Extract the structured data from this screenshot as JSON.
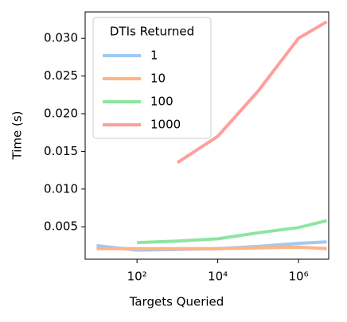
{
  "chart_data": {
    "type": "line",
    "x_label": "Targets Queried",
    "y_label": "Time (s)",
    "x": [
      10,
      100,
      1000,
      10000,
      100000,
      1000000,
      5000000
    ],
    "x_log": true,
    "xlim": [
      5.2,
      5600000
    ],
    "xticks": [
      {
        "value": 100,
        "label": "10²"
      },
      {
        "value": 10000,
        "label": "10⁴"
      },
      {
        "value": 1000000,
        "label": "10⁶"
      }
    ],
    "ylim": [
      0.0007,
      0.0335
    ],
    "yticks": [
      0.005,
      {
        "value": 0.01,
        "label": "0.010"
      },
      0.015,
      {
        "value": 0.02,
        "label": "0.020"
      },
      0.025,
      {
        "value": 0.03,
        "label": "0.030"
      }
    ],
    "grid": false,
    "legend_title": "DTIs Returned",
    "legend_position": "upper-left",
    "series": [
      {
        "name": "1",
        "color": "#a1c9f4",
        "values": [
          0.0025,
          0.0019,
          0.002,
          0.0021,
          0.0024,
          0.0028,
          0.003
        ]
      },
      {
        "name": "10",
        "color": "#ffb482",
        "values": [
          0.0021,
          0.0021,
          0.0021,
          0.0021,
          0.0022,
          0.0023,
          0.0021
        ]
      },
      {
        "name": "100",
        "color": "#8de5a1",
        "values": [
          null,
          0.0029,
          0.0031,
          0.0034,
          0.0042,
          0.0049,
          0.0058
        ]
      },
      {
        "name": "1000",
        "color": "#ff9f9b",
        "values": [
          null,
          null,
          0.0135,
          0.017,
          0.023,
          0.03,
          0.0322
        ]
      }
    ]
  }
}
